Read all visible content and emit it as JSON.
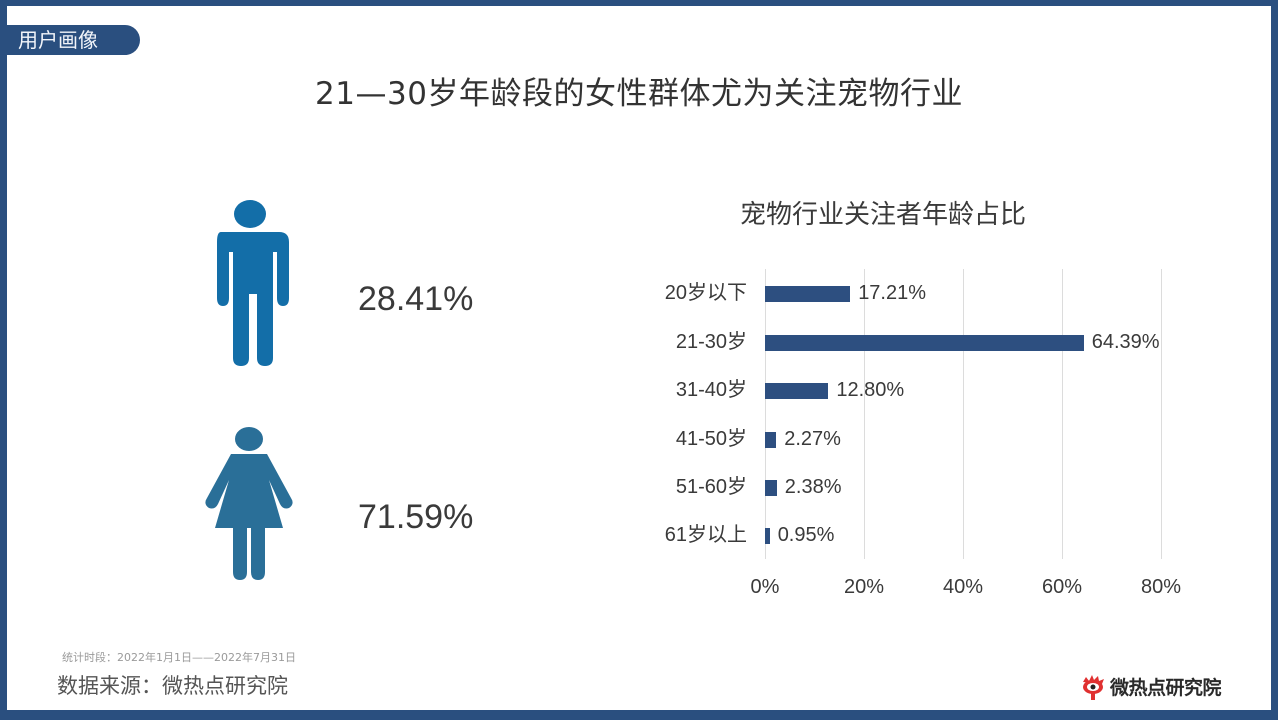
{
  "section_tag": "用户画像",
  "title": "21—30岁年龄段的女性群体尤为关注宠物行业",
  "gender": {
    "male": {
      "icon": "male-person-icon",
      "percent": "28.41%",
      "color": "#136ea8"
    },
    "female": {
      "icon": "female-person-icon",
      "percent": "71.59%",
      "color": "#2a6f98"
    }
  },
  "chart_data": {
    "type": "bar",
    "orientation": "horizontal",
    "title": "宠物行业关注者年龄占比",
    "categories": [
      "20岁以下",
      "21-30岁",
      "31-40岁",
      "41-50岁",
      "51-60岁",
      "61岁以上"
    ],
    "values": [
      17.21,
      64.39,
      12.8,
      2.27,
      2.38,
      0.95
    ],
    "labels": [
      "17.21%",
      "64.39%",
      "12.80%",
      "2.27%",
      "2.38%",
      "0.95%"
    ],
    "xlabel": "",
    "ylabel": "",
    "xlim": [
      0,
      80
    ],
    "xticks": [
      "0%",
      "20%",
      "40%",
      "60%",
      "80%"
    ],
    "grid": true,
    "legend": false,
    "bar_color": "#2d4f80"
  },
  "footer": {
    "period": "统计时段：2022年1月1日——2022年7月31日",
    "source": "数据来源：微热点研究院",
    "brand": "微热点研究院"
  },
  "colors": {
    "frame": "#2a4f7f",
    "accent": "#2d4f80"
  }
}
